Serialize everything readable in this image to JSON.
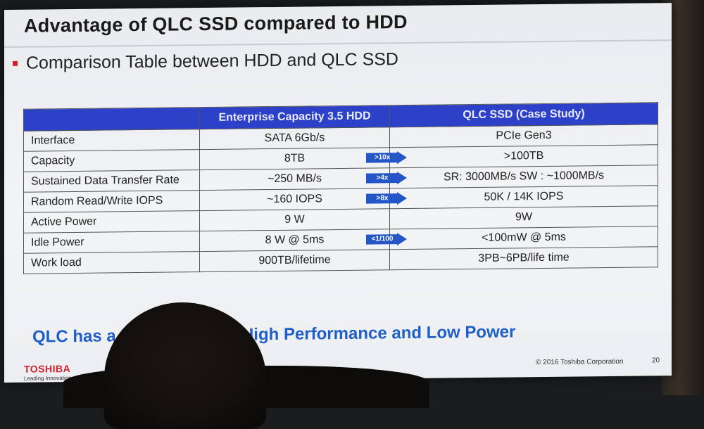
{
  "slide": {
    "title": "Advantage of QLC SSD compared to HDD",
    "subtitle": "Comparison Table between HDD and QLC SSD",
    "banner": "QLC has a High Capacity, High Performance and Low Power",
    "footer": {
      "logo": "TOSHIBA",
      "tagline": "Leading Innovation >>>",
      "copyright": "© 2016 Toshiba Corporation",
      "page": "20"
    }
  },
  "table": {
    "headers": [
      "",
      "Enterprise Capacity 3.5 HDD",
      "QLC SSD (Case Study)"
    ],
    "rows": [
      {
        "label": "Interface",
        "hdd": "SATA 6Gb/s",
        "ssd": "PCIe Gen3",
        "arrow": ""
      },
      {
        "label": "Capacity",
        "hdd": "8TB",
        "ssd": ">100TB",
        "arrow": ">10x"
      },
      {
        "label": "Sustained Data Transfer Rate",
        "hdd": "~250 MB/s",
        "ssd": "SR: 3000MB/s  SW : ~1000MB/s",
        "arrow": ">4x"
      },
      {
        "label": "Random Read/Write IOPS",
        "hdd": "~160 IOPS",
        "ssd": "50K / 14K IOPS",
        "arrow": ">8x"
      },
      {
        "label": "Active Power",
        "hdd": "9 W",
        "ssd": "9W",
        "arrow": ""
      },
      {
        "label": "Idle Power",
        "hdd": "8 W @ 5ms",
        "ssd": "<100mW @ 5ms",
        "arrow": "<1/100"
      },
      {
        "label": "Work load",
        "hdd": "900TB/lifetime",
        "ssd": "3PB~6PB/life time",
        "arrow": ""
      }
    ]
  },
  "colors": {
    "header_blue": "#2d40c8",
    "arrow_blue": "#2456c8",
    "banner_blue": "#1f5fc9",
    "toshiba_red": "#d0202a"
  }
}
